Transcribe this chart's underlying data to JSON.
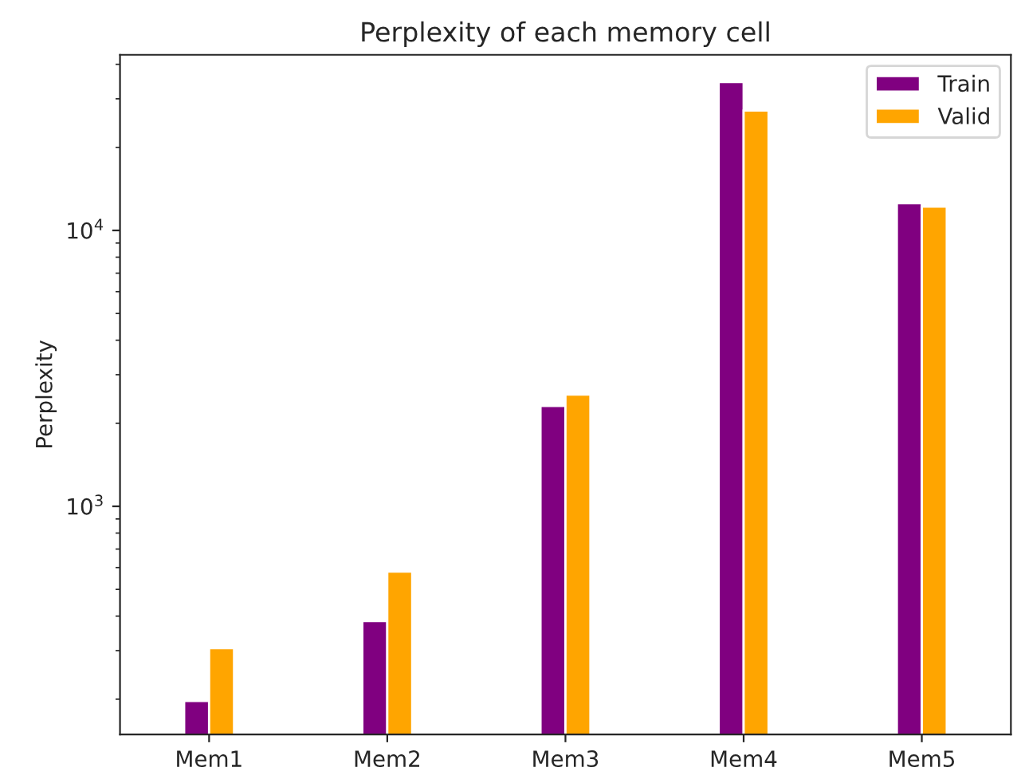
{
  "chart_data": {
    "type": "bar",
    "title": "Perplexity of each memory cell",
    "ylabel": "Perplexity",
    "categories": [
      "Mem1",
      "Mem2",
      "Mem3",
      "Mem4",
      "Mem5"
    ],
    "series": [
      {
        "name": "Train",
        "color": "#800080",
        "values": [
          197,
          384,
          2310,
          34500,
          12550
        ]
      },
      {
        "name": "Valid",
        "color": "#ffa500",
        "values": [
          306,
          580,
          2540,
          27200,
          12200
        ]
      }
    ],
    "log": "y",
    "ylim": [
      149,
      43300
    ],
    "yticks": [
      {
        "value": 1000,
        "label": "10$^{3}$"
      },
      {
        "value": 10000,
        "label": "10$^{4}$"
      }
    ],
    "grid": false,
    "legend": "top right"
  }
}
